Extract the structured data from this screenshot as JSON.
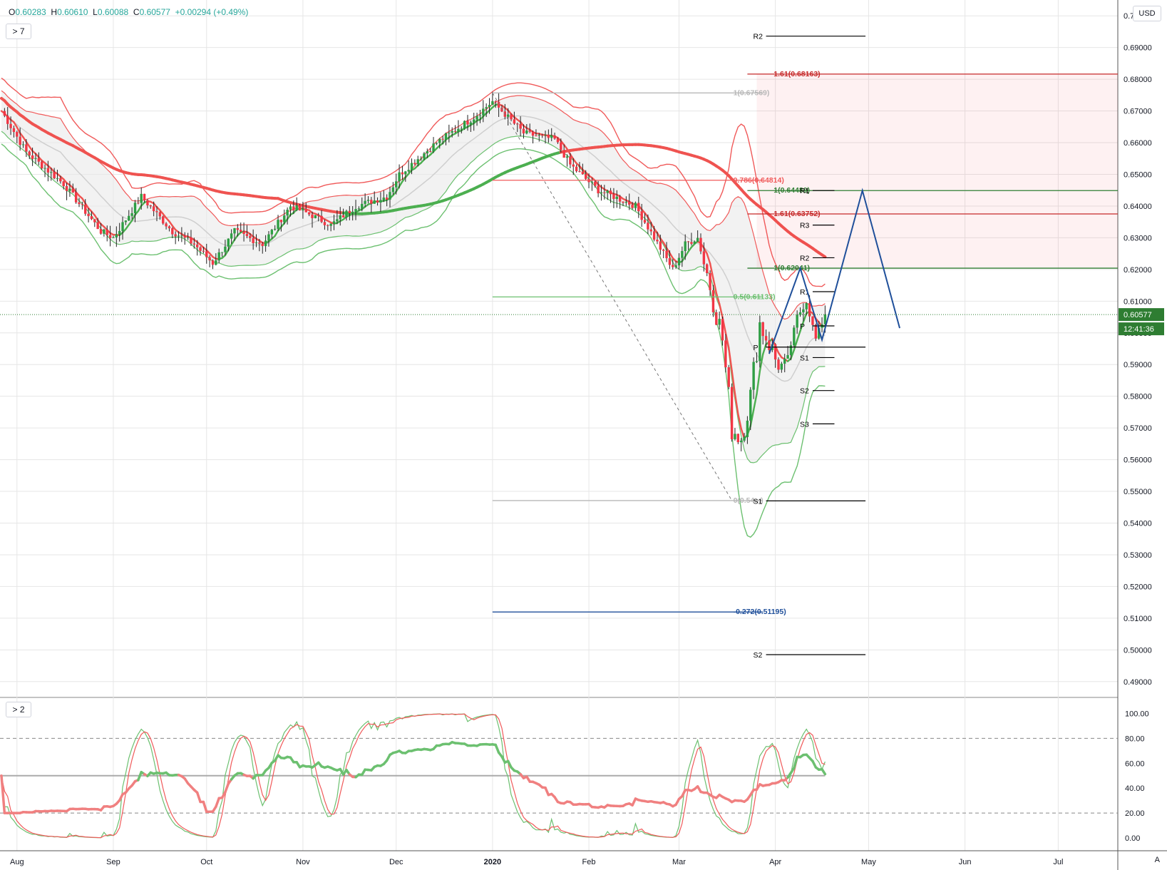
{
  "legend": {
    "o_label": "O",
    "o": "0.60283",
    "h_label": "H",
    "h": "0.60610",
    "l_label": "L",
    "l": "0.60088",
    "c_label": "C",
    "c": "0.60577",
    "change": "+0.00294 (+0.49%)"
  },
  "main_pane_button": "> 7",
  "osc_pane_button": "> 2",
  "axis_unit": "USD",
  "axis_mode": "A",
  "last_price_label": "0.60577",
  "countdown_label": "12:41:36",
  "colors": {
    "up": "#26a69a",
    "candle_up": "#2e9e44",
    "candle_down": "#f23645",
    "red_line": "#f05a5a",
    "green_line": "#6cc070",
    "blue": "#1f4f9a",
    "fib_red": "#c62828",
    "grid": "#e6e6e6"
  },
  "chart_data": {
    "type": "candlestick",
    "instrument_quote": "USD",
    "price_axis": {
      "min": 0.485,
      "max": 0.705,
      "ticks": [
        "0.70000",
        "0.69000",
        "0.68000",
        "0.67000",
        "0.66000",
        "0.65000",
        "0.64000",
        "0.63000",
        "0.62000",
        "0.61000",
        "0.60000",
        "0.59000",
        "0.58000",
        "0.57000",
        "0.56000",
        "0.55000",
        "0.54000",
        "0.53000",
        "0.52000",
        "0.51000",
        "0.50000",
        "0.49000"
      ]
    },
    "time_axis": {
      "labels": [
        "Aug",
        "Sep",
        "Oct",
        "Nov",
        "Dec",
        "2020",
        "Feb",
        "Mar",
        "Apr",
        "May",
        "Jun",
        "Jul"
      ],
      "label_day_index": [
        5,
        36,
        66,
        97,
        127,
        158,
        189,
        218,
        249,
        279,
        310,
        340
      ]
    },
    "waypoints": [
      [
        0,
        0.67
      ],
      [
        8,
        0.657
      ],
      [
        20,
        0.647
      ],
      [
        32,
        0.632
      ],
      [
        36,
        0.63
      ],
      [
        45,
        0.643
      ],
      [
        55,
        0.632
      ],
      [
        62,
        0.628
      ],
      [
        68,
        0.622
      ],
      [
        75,
        0.632
      ],
      [
        84,
        0.628
      ],
      [
        93,
        0.64
      ],
      [
        100,
        0.637
      ],
      [
        106,
        0.634
      ],
      [
        114,
        0.64
      ],
      [
        124,
        0.643
      ],
      [
        128,
        0.65
      ],
      [
        140,
        0.66
      ],
      [
        152,
        0.668
      ],
      [
        158,
        0.673
      ],
      [
        168,
        0.663
      ],
      [
        178,
        0.661
      ],
      [
        183,
        0.653
      ],
      [
        192,
        0.645
      ],
      [
        197,
        0.643
      ],
      [
        204,
        0.64
      ],
      [
        210,
        0.63
      ],
      [
        216,
        0.62
      ],
      [
        220,
        0.628
      ],
      [
        224,
        0.63
      ],
      [
        228,
        0.615
      ],
      [
        232,
        0.598
      ],
      [
        235,
        0.57
      ],
      [
        238,
        0.567
      ],
      [
        241,
        0.58
      ],
      [
        244,
        0.603
      ],
      [
        247,
        0.597
      ],
      [
        250,
        0.589
      ],
      [
        253,
        0.592
      ],
      [
        256,
        0.605
      ],
      [
        259,
        0.61
      ],
      [
        262,
        0.598
      ],
      [
        265,
        0.6058
      ]
    ],
    "pivot_lines": [
      {
        "label": "R2",
        "price": 0.6936
      },
      {
        "label": "R1",
        "price": 0.6449
      },
      {
        "label": "R3",
        "price": 0.634
      },
      {
        "label": "R2",
        "price": 0.6237
      },
      {
        "label": "R1",
        "price": 0.613
      },
      {
        "label": "P",
        "price": 0.6022
      },
      {
        "label": "P",
        "price": 0.5955
      },
      {
        "label": "S1",
        "price": 0.5922
      },
      {
        "label": "S2",
        "price": 0.5818
      },
      {
        "label": "S3",
        "price": 0.5713
      },
      {
        "label": "S1",
        "price": 0.547
      },
      {
        "label": "S2",
        "price": 0.4985
      }
    ],
    "fib_levels": [
      {
        "label": "1.61(0.68163)",
        "price": 0.68163,
        "color": "#c62828"
      },
      {
        "label": "1(0.67569)",
        "price": 0.67569,
        "color": "#b8b8b8"
      },
      {
        "label": "0.786(0.64814)",
        "price": 0.64814,
        "color": "#f05a5a"
      },
      {
        "label": "1(0.64489)",
        "price": 0.64489,
        "color": "#2e7d32"
      },
      {
        "label": "1.61(0.63752)",
        "price": 0.63752,
        "color": "#c62828"
      },
      {
        "label": "1(0.62041)",
        "price": 0.62041,
        "color": "#2e7d32"
      },
      {
        "label": "0.5(0.61133)",
        "price": 0.61133,
        "color": "#6cc070"
      },
      {
        "label": "0(0.54...)",
        "price": 0.5471,
        "color": "#b8b8b8"
      },
      {
        "label": "-0.272(0.51195)",
        "price": 0.51195,
        "color": "#1f4f9a"
      }
    ],
    "projection_path": [
      [
        247,
        0.5934
      ],
      [
        257,
        0.6204
      ],
      [
        264,
        0.5978
      ],
      [
        277,
        0.6449
      ],
      [
        289,
        0.6015
      ]
    ],
    "oscillator": {
      "axis_ticks": [
        "100.00",
        "80.00",
        "60.00",
        "40.00",
        "20.00",
        "0.00"
      ],
      "levels": [
        80,
        50,
        20
      ],
      "last_value": 75
    }
  }
}
